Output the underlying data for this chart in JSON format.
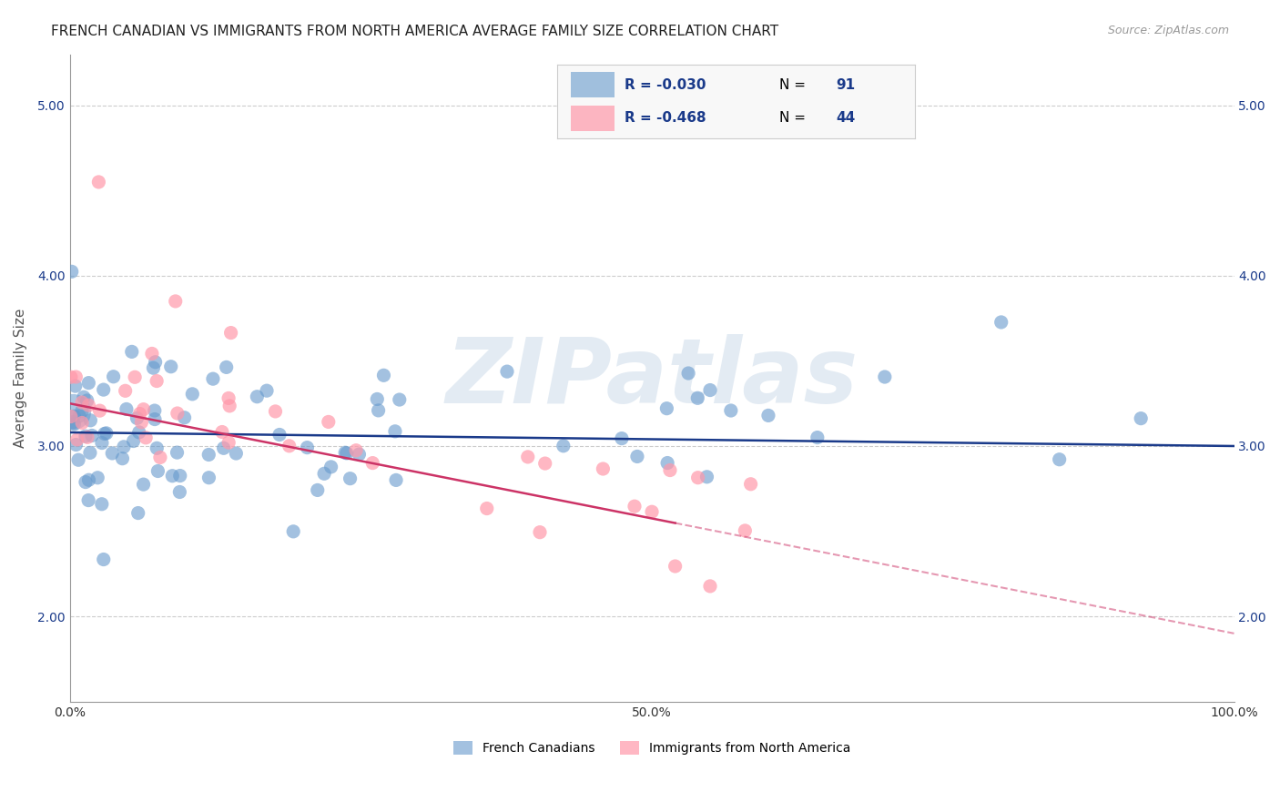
{
  "title": "FRENCH CANADIAN VS IMMIGRANTS FROM NORTH AMERICA AVERAGE FAMILY SIZE CORRELATION CHART",
  "source": "Source: ZipAtlas.com",
  "xlabel": "",
  "ylabel": "Average Family Size",
  "xlim": [
    0,
    1
  ],
  "ylim": [
    1.5,
    5.3
  ],
  "yticks": [
    2.0,
    3.0,
    4.0,
    5.0
  ],
  "xticks": [
    0.0,
    0.1,
    0.2,
    0.3,
    0.4,
    0.5,
    0.6,
    0.7,
    0.8,
    0.9,
    1.0
  ],
  "xtick_labels": [
    "0.0%",
    "",
    "",
    "",
    "",
    "50.0%",
    "",
    "",
    "",
    "",
    "100.0%"
  ],
  "legend_label1": "R = -0.030   N =  91",
  "legend_label2": "R = -0.468   N = 44",
  "legend_foot1": "French Canadians",
  "legend_foot2": "Immigrants from North America",
  "blue_color": "#6699cc",
  "pink_color": "#ff99aa",
  "blue_line_color": "#1a3a8a",
  "pink_line_color": "#cc3366",
  "R1": -0.03,
  "N1": 91,
  "R2": -0.468,
  "N2": 44,
  "seed": 42,
  "blue_intercept": 3.08,
  "blue_slope": -0.08,
  "pink_intercept": 3.25,
  "pink_slope": -1.35,
  "background_color": "#ffffff",
  "grid_color": "#cccccc",
  "watermark": "ZIPatlas",
  "watermark_color": "#c8d8e8"
}
